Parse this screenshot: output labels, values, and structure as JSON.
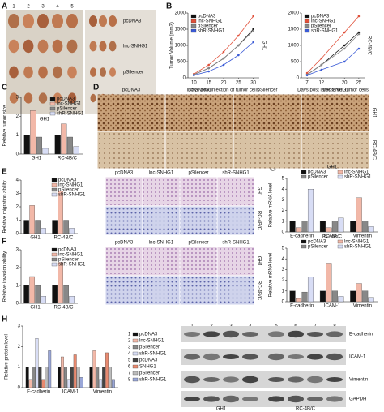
{
  "panel_letters": [
    "A",
    "B",
    "C",
    "D",
    "E",
    "F",
    "G",
    "H"
  ],
  "photo_a": {
    "columns": [
      "1",
      "2",
      "3",
      "4",
      "5"
    ],
    "rows": [
      "pcDNA3",
      "lnc-SNHG1",
      "pSilencer",
      "shR-SNHG1"
    ],
    "groups": [
      "GH1",
      "RC-4B/C"
    ]
  },
  "image_columns": [
    "pcDNA3",
    "lnc-SNHG1",
    "pSilencer",
    "shR-SNHG1"
  ],
  "image_rows": [
    "GH1",
    "RC-4B/C"
  ],
  "blot": {
    "lanes": [
      "1",
      "2",
      "3",
      "4",
      "5",
      "6",
      "7",
      "8"
    ],
    "proteins": [
      "E-cadherin",
      "ICAM-1",
      "Vimentin",
      "GAPDH"
    ],
    "groups": [
      "GH1",
      "RC-4B/C"
    ]
  },
  "chart_data": [
    {
      "type": "line",
      "ylabel": "Tumor Volume (mm3)",
      "xlabel": "Days post injection of tumor cells",
      "side_label": "GH1",
      "x": [
        10,
        15,
        20,
        25,
        30
      ],
      "xlim": [
        8,
        32
      ],
      "xticks": [
        10,
        15,
        20,
        25,
        30
      ],
      "ylim": [
        0,
        2000
      ],
      "yticks": [
        0,
        500,
        1000,
        1500,
        2000
      ],
      "series": [
        {
          "name": "pcDNA3",
          "color": "#111111",
          "values": [
            100,
            300,
            600,
            1000,
            1500
          ]
        },
        {
          "name": "lnc-SNHG1",
          "color": "#e0503a",
          "values": [
            120,
            400,
            800,
            1300,
            1900
          ]
        },
        {
          "name": "pSilencer",
          "color": "#888888",
          "values": [
            100,
            300,
            600,
            1000,
            1450
          ]
        },
        {
          "name": "shR-SNHG1",
          "color": "#3b5bd6",
          "values": [
            80,
            200,
            400,
            700,
            1100
          ]
        }
      ]
    },
    {
      "type": "line",
      "xlabel": "Days post injection of tumor cells",
      "side_label": "RC-4B/C",
      "x": [
        7,
        12,
        20,
        25
      ],
      "xlim": [
        5,
        27
      ],
      "xticks": [
        7,
        12,
        20,
        25
      ],
      "ylim": [
        0,
        2000
      ],
      "yticks": [
        0,
        500,
        1000,
        1500,
        2000
      ],
      "series": [
        {
          "name": "pcDNA3",
          "color": "#111111",
          "values": [
            100,
            400,
            1000,
            1400
          ]
        },
        {
          "name": "lnc-SNHG1",
          "color": "#e0503a",
          "values": [
            150,
            600,
            1400,
            1900
          ]
        },
        {
          "name": "pSilencer",
          "color": "#888888",
          "values": [
            100,
            400,
            900,
            1350
          ]
        },
        {
          "name": "shR-SNHG1",
          "color": "#3b5bd6",
          "values": [
            80,
            250,
            500,
            900
          ]
        }
      ]
    },
    {
      "type": "bar",
      "ylabel": "Relative tumor size",
      "categories": [
        "GH1",
        "RC-4B/C"
      ],
      "ylim": [
        0,
        3
      ],
      "yticks": [
        0,
        1,
        2,
        3
      ],
      "series": [
        {
          "name": "pcDNA3",
          "color": "#111111",
          "values": [
            1,
            1
          ]
        },
        {
          "name": "lnc-SNHG1",
          "color": "#f2b8a8",
          "values": [
            2.3,
            1.6
          ]
        },
        {
          "name": "pSilencer",
          "color": "#888888",
          "values": [
            0.9,
            0.9
          ]
        },
        {
          "name": "shR-SNHG1",
          "color": "#d8ddf5",
          "values": [
            0.3,
            0.4
          ]
        }
      ]
    },
    {
      "type": "bar",
      "ylabel": "Relative migration ability",
      "categories": [
        "GH1",
        "RC-4B/C"
      ],
      "ylim": [
        0,
        4
      ],
      "yticks": [
        0,
        1,
        2,
        3,
        4
      ],
      "series": [
        {
          "name": "pcDNA3",
          "color": "#111111",
          "values": [
            1,
            1
          ]
        },
        {
          "name": "lnc-SNHG1",
          "color": "#f2b8a8",
          "values": [
            2.1,
            3.2
          ]
        },
        {
          "name": "pSilencer",
          "color": "#888888",
          "values": [
            1,
            1
          ]
        },
        {
          "name": "shR-SNHG1",
          "color": "#d8ddf5",
          "values": [
            0.4,
            0.4
          ]
        }
      ]
    },
    {
      "type": "bar",
      "ylabel": "Relative invasion ability",
      "categories": [
        "GH1",
        "RC-4B/C"
      ],
      "ylim": [
        0,
        3
      ],
      "yticks": [
        0,
        1,
        2,
        3
      ],
      "series": [
        {
          "name": "pcDNA3",
          "color": "#111111",
          "values": [
            1,
            1
          ]
        },
        {
          "name": "lnc-SNHG1",
          "color": "#f2b8a8",
          "values": [
            1.5,
            2.3
          ]
        },
        {
          "name": "pSilencer",
          "color": "#888888",
          "values": [
            1,
            1
          ]
        },
        {
          "name": "shR-SNHG1",
          "color": "#d8ddf5",
          "values": [
            0.4,
            0.4
          ]
        }
      ]
    },
    {
      "type": "bar",
      "title": "GH1",
      "ylabel": "Relative mRNA level",
      "categories": [
        "E-cadherin",
        "ICAM-1",
        "Vimentin"
      ],
      "ylim": [
        0,
        5
      ],
      "yticks": [
        0,
        1,
        2,
        3,
        4,
        5
      ],
      "series": [
        {
          "name": "pcDNA3",
          "color": "#111111",
          "values": [
            1,
            1,
            1
          ]
        },
        {
          "name": "lnc-SNHG1",
          "color": "#f2b8a8",
          "values": [
            0.4,
            0.4,
            3.2
          ]
        },
        {
          "name": "pSilencer",
          "color": "#888888",
          "values": [
            1,
            1,
            1
          ]
        },
        {
          "name": "shR-SNHG1",
          "color": "#d8ddf5",
          "values": [
            4,
            1.3,
            0.5
          ]
        }
      ]
    },
    {
      "type": "bar",
      "title": "RC-4B/C",
      "ylabel": "Relative mRNA level",
      "categories": [
        "E-cadherin",
        "ICAM-1",
        "Vimentin"
      ],
      "ylim": [
        0,
        5
      ],
      "yticks": [
        0,
        1,
        2,
        3,
        4,
        5
      ],
      "series": [
        {
          "name": "pcDNA3",
          "color": "#111111",
          "values": [
            1,
            1,
            1
          ]
        },
        {
          "name": "lnc-SNHG1",
          "color": "#f2b8a8",
          "values": [
            0.3,
            3.6,
            1.7
          ]
        },
        {
          "name": "pSilencer",
          "color": "#888888",
          "values": [
            0.9,
            1,
            1
          ]
        },
        {
          "name": "shR-SNHG1",
          "color": "#d8ddf5",
          "values": [
            2.3,
            0.5,
            0.4
          ]
        }
      ]
    },
    {
      "type": "bar",
      "ylabel": "Relative protein level",
      "categories": [
        "E-cadherin",
        "ICAM-1",
        "Vimentin"
      ],
      "ylim": [
        0,
        3
      ],
      "yticks": [
        0,
        1,
        2,
        3
      ],
      "series": [
        {
          "name": "pcDNA3",
          "color": "#111111",
          "values": [
            1,
            1,
            1
          ]
        },
        {
          "name": "lnc-SNHG1",
          "color": "#f2b8a8",
          "values": [
            0.4,
            1.5,
            1.8
          ]
        },
        {
          "name": "pSilencer",
          "color": "#888888",
          "values": [
            1,
            1,
            1
          ]
        },
        {
          "name": "shR-SNHG1",
          "color": "#d8ddf5",
          "values": [
            2.4,
            0.4,
            0.4
          ]
        },
        {
          "name": "pcDNA3",
          "color": "#444444",
          "values": [
            1,
            1,
            1
          ]
        },
        {
          "name": "SNHG1",
          "color": "#e88a70",
          "values": [
            0.4,
            1.6,
            1.7
          ]
        },
        {
          "name": "pSilencer",
          "color": "#bbbbbb",
          "values": [
            1,
            1,
            1
          ]
        },
        {
          "name": "shR-SNHG1",
          "color": "#9aa7d8",
          "values": [
            1.8,
            0.5,
            0.4
          ]
        }
      ]
    }
  ]
}
